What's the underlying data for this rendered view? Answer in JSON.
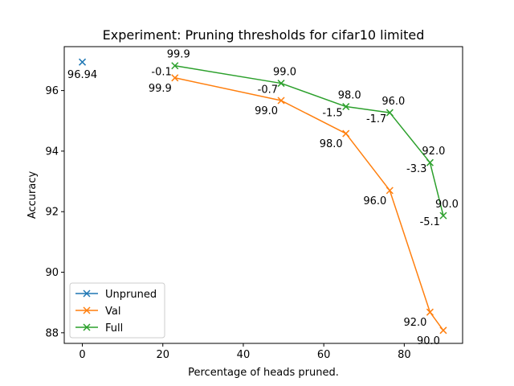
{
  "chart_data": {
    "type": "line",
    "title": "Experiment: Pruning thresholds for cifar10 limited",
    "xlabel": "Percentage of heads pruned.",
    "ylabel": "Accuracy",
    "xlim": [
      -4.5,
      94.5
    ],
    "ylim": [
      87.65,
      97.45
    ],
    "xticks": [
      0,
      20,
      40,
      60,
      80
    ],
    "yticks": [
      88,
      90,
      92,
      94,
      96
    ],
    "grid": false,
    "legend_position": "lower-left",
    "series": [
      {
        "name": "Unpruned",
        "color": "#1f77b4",
        "marker": "x",
        "points": [
          {
            "x": 0,
            "y": 96.94,
            "label": "96.94"
          }
        ]
      },
      {
        "name": "Val",
        "color": "#ff7f0e",
        "marker": "x",
        "points": [
          {
            "x": 23.0,
            "y": 96.42,
            "label": "99.9"
          },
          {
            "x": 49.4,
            "y": 95.67,
            "label": "99.0"
          },
          {
            "x": 65.5,
            "y": 94.58,
            "label": "98.0"
          },
          {
            "x": 76.4,
            "y": 92.7,
            "label": "96.0"
          },
          {
            "x": 86.4,
            "y": 88.68,
            "label": "92.0"
          },
          {
            "x": 89.7,
            "y": 88.08,
            "label": "90.0"
          }
        ]
      },
      {
        "name": "Full",
        "color": "#2ca02c",
        "marker": "x",
        "points": [
          {
            "x": 23.0,
            "y": 96.82,
            "labels": [
              "99.9",
              "-0.1"
            ]
          },
          {
            "x": 49.4,
            "y": 96.24,
            "labels": [
              "99.0",
              "-0.7"
            ]
          },
          {
            "x": 65.5,
            "y": 95.47,
            "labels": [
              "98.0",
              "-1.5"
            ]
          },
          {
            "x": 76.4,
            "y": 95.27,
            "labels": [
              "96.0",
              "-1.7"
            ]
          },
          {
            "x": 86.4,
            "y": 93.62,
            "labels": [
              "92.0",
              "-3.3"
            ]
          },
          {
            "x": 89.7,
            "y": 91.87,
            "labels": [
              "90.0",
              "-5.1"
            ]
          }
        ]
      }
    ]
  }
}
